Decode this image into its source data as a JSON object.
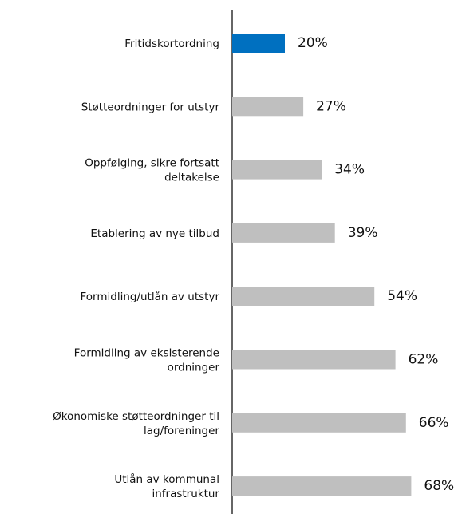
{
  "chart_data": {
    "type": "barh",
    "categories": [
      "Fritidskortordning",
      "Støtteordninger for utstyr",
      "Oppfølging, sikre fortsatt\ndeltakelse",
      "Etablering av nye tilbud",
      "Formidling/utlån av utstyr",
      "Formidling av eksisterende\nordninger",
      "Økonomiske støtteordninger til\nlag/foreninger",
      "Utlån av kommunal\ninfrastruktur"
    ],
    "values": [
      20,
      27,
      34,
      39,
      54,
      62,
      66,
      68
    ],
    "value_labels": [
      "20%",
      "27%",
      "34%",
      "39%",
      "54%",
      "62%",
      "66%",
      "68%"
    ],
    "colors": [
      "#0070c0",
      "#bfbfbf",
      "#bfbfbf",
      "#bfbfbf",
      "#bfbfbf",
      "#bfbfbf",
      "#bfbfbf",
      "#bfbfbf"
    ]
  }
}
